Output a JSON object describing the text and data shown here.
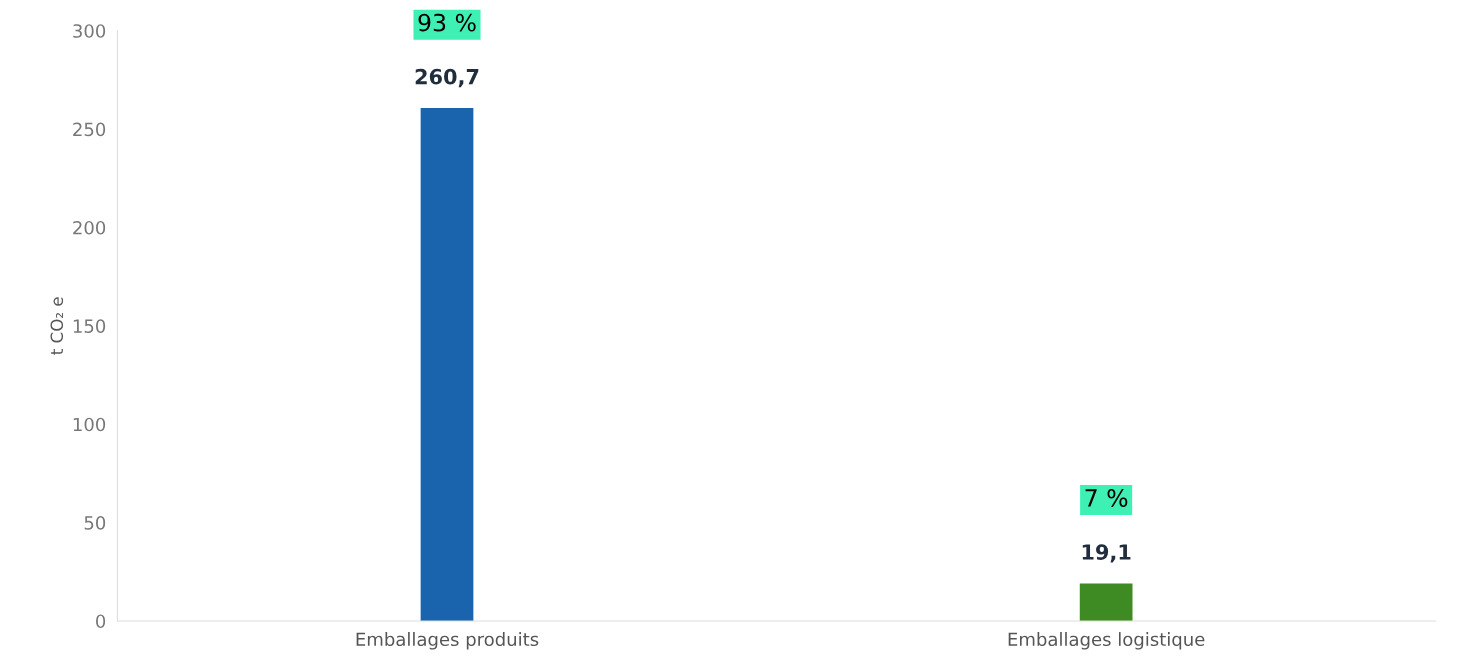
{
  "chart_data": {
    "type": "bar",
    "ylabel": "t CO₂ e",
    "categories": [
      "Emballages produits",
      "Emballages logistique"
    ],
    "values": [
      260.7,
      19.1
    ],
    "colors": [
      "#1a64ae",
      "#3e8a23"
    ],
    "value_labels": [
      "260,7",
      "19,1"
    ],
    "annotations": [
      "93 %",
      "7 %"
    ],
    "ylim": [
      0,
      300
    ],
    "yticks": [
      0,
      50,
      100,
      150,
      200,
      250,
      300
    ],
    "grid": false,
    "legend": false
  }
}
